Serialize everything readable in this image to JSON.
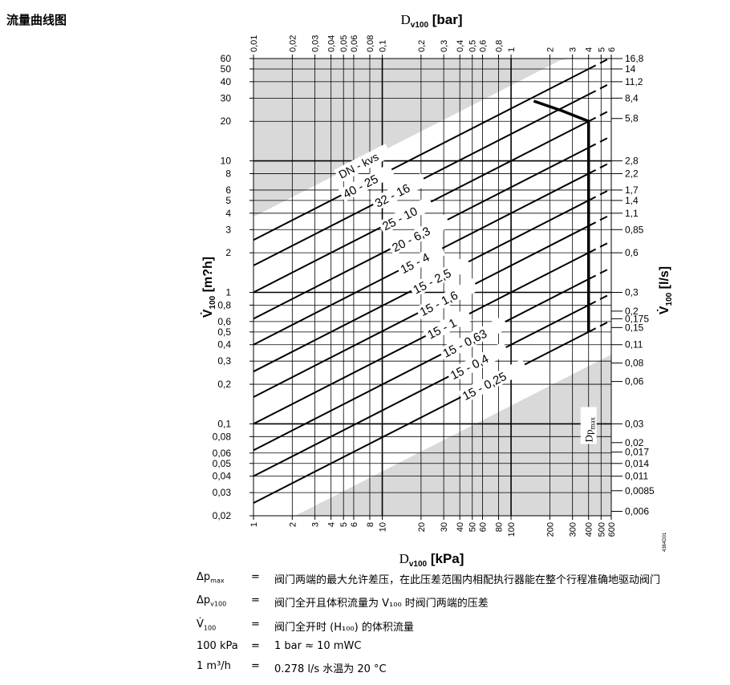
{
  "page_title": "流量曲线图",
  "figure_code": "4364D01",
  "chart_data": {
    "type": "line",
    "scale": "log-log",
    "title_top": "Dp",
    "title_top_sub": "v100",
    "title_top_unit": "[bar]",
    "xlabel": "Dp",
    "xlabel_sub": "v100",
    "xlabel_unit": "[kPa]",
    "ylabel_left": "V̇",
    "ylabel_left_sub": "100",
    "ylabel_left_unit": "[m?h]",
    "ylabel_right": "V̇",
    "ylabel_right_sub": "100",
    "ylabel_right_unit": "[l/s]",
    "xlim": [
      1,
      600
    ],
    "ylim": [
      0.02,
      60
    ],
    "x_ticks": [
      "1",
      "2",
      "3",
      "4",
      "5",
      "6",
      "8",
      "10",
      "20",
      "30",
      "40",
      "50",
      "60",
      "80",
      "100",
      "200",
      "300",
      "400",
      "500",
      "600"
    ],
    "x_tick_values": [
      1,
      2,
      3,
      4,
      5,
      6,
      8,
      10,
      20,
      30,
      40,
      50,
      60,
      80,
      100,
      200,
      300,
      400,
      500,
      600
    ],
    "top_ticks": [
      "0,01",
      "0,02",
      "0,03",
      "0,04",
      "0,05",
      "0,06",
      "0,08",
      "0,1",
      "0,2",
      "0,3",
      "0,4",
      "0,5",
      "0,6",
      "0,8",
      "1",
      "2",
      "3",
      "4",
      "5",
      "6"
    ],
    "y_ticks": [
      "60",
      "50",
      "40",
      "30",
      "20",
      "10",
      "8",
      "6",
      "5",
      "4",
      "3",
      "2",
      "1",
      "0,8",
      "0,6",
      "0,5",
      "0,4",
      "0,3",
      "0,2",
      "0,1",
      "0,08",
      "0,06",
      "0,05",
      "0,04",
      "0,03",
      "0,02"
    ],
    "y_tick_values": [
      60,
      50,
      40,
      30,
      20,
      10,
      8,
      6,
      5,
      4,
      3,
      2,
      1,
      0.8,
      0.6,
      0.5,
      0.4,
      0.3,
      0.2,
      0.1,
      0.08,
      0.06,
      0.05,
      0.04,
      0.03,
      0.02
    ],
    "right_ticks": [
      "16,8",
      "14",
      "11,2",
      "8,4",
      "5,8",
      "2,8",
      "2,2",
      "1,7",
      "1,4",
      "1,1",
      "0,85",
      "0,6",
      "0,3",
      "0,2",
      "0,175",
      "0,15",
      "0,11",
      "0,08",
      "0,06",
      "0,03",
      "0,02",
      "0,017",
      "0,014",
      "0,011",
      "0,0085",
      "0,006"
    ],
    "right_tick_values": [
      60,
      50,
      40,
      30,
      21,
      10,
      8,
      6,
      5,
      4,
      3,
      2,
      1,
      0.72,
      0.63,
      0.54,
      0.4,
      0.29,
      0.21,
      0.1,
      0.072,
      0.061,
      0.05,
      0.04,
      0.031,
      0.0216
    ],
    "legend_title": "DN - kvs",
    "series": [
      {
        "name": "40 - 25",
        "kvs": 25
      },
      {
        "name": "32 - 16",
        "kvs": 16
      },
      {
        "name": "25 - 10",
        "kvs": 10
      },
      {
        "name": "20 - 6,3",
        "kvs": 6.3
      },
      {
        "name": "15 - 4",
        "kvs": 4
      },
      {
        "name": "15 - 2,5",
        "kvs": 2.5
      },
      {
        "name": "15 - 1,6",
        "kvs": 1.6
      },
      {
        "name": "15 - 1",
        "kvs": 1
      },
      {
        "name": "15 - 0,63",
        "kvs": 0.63
      },
      {
        "name": "15 - 0,4",
        "kvs": 0.4
      },
      {
        "name": "15 - 0,25",
        "kvs": 0.25
      }
    ],
    "dpmax_label": "Dp",
    "dpmax_sub": "max",
    "dpmax_kpa": 400,
    "limit_curve": [
      [
        150,
        28.5
      ],
      [
        250,
        24
      ],
      [
        400,
        20
      ],
      [
        400,
        0.5
      ]
    ]
  },
  "legend": [
    {
      "symbol": "Δp",
      "sub": "max",
      "eq": "=",
      "desc": "阀门两端的最大允许差压，在此压差范围内相配执行器能在整个行程准确地驱动阀门"
    },
    {
      "symbol": "Δp",
      "sub": "v100",
      "eq": "=",
      "desc": "阀门全开且体积流量为 V₁₀₀ 时阀门两端的压差"
    },
    {
      "symbol": "V̇",
      "sub": "100",
      "eq": "=",
      "desc": "阀门全开时 (H₁₀₀) 的体积流量"
    },
    {
      "symbol": "100 kPa",
      "sub": "",
      "eq": "=",
      "desc": "1 bar ≈ 10 mWC"
    },
    {
      "symbol": "1 m³/h",
      "sub": "",
      "eq": "=",
      "desc": "0.278 l/s 水温为 20 °C"
    }
  ]
}
